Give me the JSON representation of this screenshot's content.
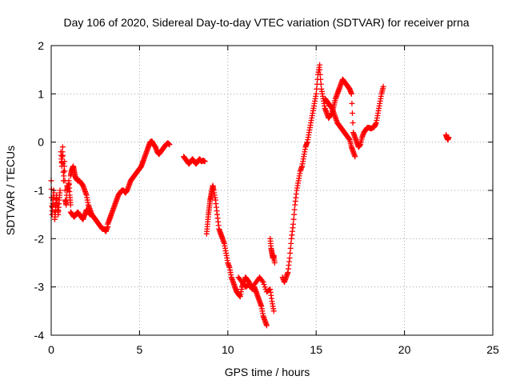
{
  "colors": {
    "series": "#ff0000",
    "grid": "#a0a0a0",
    "axis": "#000000",
    "background": "#ffffff"
  },
  "chart_data": {
    "type": "scatter",
    "title": "Day 106 of 2020, Sidereal Day-to-day VTEC variation (SDTVAR) for receiver prna",
    "xlabel": "GPS time / hours",
    "ylabel": "SDTVAR / TECUs",
    "xlim": [
      0,
      25
    ],
    "ylim": [
      -4,
      2
    ],
    "x_ticks": [
      0,
      5,
      10,
      15,
      20,
      25
    ],
    "y_ticks": [
      -4,
      -3,
      -2,
      -1,
      0,
      1,
      2
    ],
    "grid": true,
    "marker": "plus",
    "series": [
      {
        "name": "SDTVAR",
        "segments": [
          {
            "x": [
              0.0,
              0.05,
              0.1,
              0.15,
              0.2,
              0.25,
              0.3,
              0.35,
              0.4,
              0.45,
              0.5
            ],
            "y": [
              -0.8,
              -1.5,
              -1.2,
              -1.0,
              -1.6,
              -1.4,
              -1.1,
              -1.3,
              -1.5,
              -1.2,
              -1.0
            ]
          },
          {
            "x": [
              0.55,
              0.6,
              0.65,
              0.7,
              0.75,
              0.8,
              0.85,
              0.9,
              0.95,
              1.0,
              1.05,
              1.1
            ],
            "y": [
              -0.2,
              -0.5,
              -0.1,
              -0.8,
              -0.4,
              -1.2,
              -1.3,
              -0.9,
              -1.0,
              -0.8,
              -1.1,
              -1.3
            ]
          },
          {
            "x": [
              1.1,
              1.2,
              1.3,
              1.4,
              1.5,
              1.6,
              1.7,
              1.8,
              1.9,
              2.0,
              2.1,
              2.2
            ],
            "y": [
              -1.45,
              -1.5,
              -1.55,
              -1.5,
              -1.45,
              -1.5,
              -1.55,
              -1.6,
              -1.5,
              -1.4,
              -1.45,
              -1.5
            ]
          },
          {
            "x": [
              1.1,
              1.15,
              1.2,
              1.25,
              1.3,
              1.35,
              1.4,
              1.5,
              1.6,
              1.7,
              1.8,
              1.9,
              2.0,
              2.1,
              2.2,
              2.3,
              2.4,
              2.5,
              2.6,
              2.7,
              2.8,
              2.9,
              3.0,
              3.1,
              3.2
            ],
            "y": [
              -0.7,
              -0.6,
              -0.55,
              -0.5,
              -0.6,
              -0.7,
              -0.75,
              -0.8,
              -0.8,
              -0.85,
              -0.9,
              -1.0,
              -1.1,
              -1.3,
              -1.4,
              -1.5,
              -1.55,
              -1.6,
              -1.65,
              -1.7,
              -1.75,
              -1.8,
              -1.8,
              -1.85,
              -1.75
            ]
          },
          {
            "x": [
              3.2,
              3.3,
              3.4,
              3.5,
              3.6,
              3.7,
              3.8,
              3.9,
              4.0,
              4.1,
              4.2,
              4.3,
              4.4,
              4.5,
              4.6,
              4.7,
              4.8,
              4.9,
              5.0,
              5.1,
              5.2,
              5.3,
              5.4,
              5.5,
              5.6,
              5.7,
              5.8,
              5.9,
              6.0,
              6.1,
              6.2,
              6.3,
              6.4,
              6.5,
              6.6,
              6.7
            ],
            "y": [
              -1.7,
              -1.6,
              -1.5,
              -1.4,
              -1.3,
              -1.2,
              -1.1,
              -1.05,
              -1.0,
              -1.0,
              -1.05,
              -1.0,
              -0.9,
              -0.8,
              -0.75,
              -0.7,
              -0.65,
              -0.6,
              -0.55,
              -0.5,
              -0.4,
              -0.3,
              -0.2,
              -0.1,
              0.0,
              0.02,
              -0.05,
              -0.1,
              -0.2,
              -0.25,
              -0.2,
              -0.15,
              -0.1,
              -0.05,
              -0.02,
              -0.05
            ]
          },
          {
            "x": [
              7.5,
              7.6,
              7.7,
              7.8,
              7.9,
              8.0,
              8.1,
              8.2,
              8.3,
              8.4,
              8.5,
              8.6,
              8.7
            ],
            "y": [
              -0.3,
              -0.35,
              -0.4,
              -0.45,
              -0.4,
              -0.35,
              -0.4,
              -0.45,
              -0.4,
              -0.35,
              -0.4,
              -0.38,
              -0.4
            ]
          },
          {
            "x": [
              8.8,
              8.85,
              8.9,
              8.95,
              9.0,
              9.05,
              9.1,
              9.15,
              9.2,
              9.3,
              9.4,
              9.5,
              9.6,
              9.7,
              9.8,
              9.9,
              10.0,
              10.1,
              10.2,
              10.3,
              10.4,
              10.5,
              10.6,
              10.7,
              10.8,
              10.9,
              11.0,
              11.1,
              11.2,
              11.3,
              11.4,
              11.5,
              11.6,
              11.7,
              11.8,
              11.9,
              12.0,
              12.1,
              12.2
            ],
            "y": [
              -1.9,
              -1.7,
              -1.5,
              -1.35,
              -1.2,
              -1.1,
              -1.0,
              -0.9,
              -1.0,
              -1.2,
              -1.5,
              -1.8,
              -1.9,
              -2.0,
              -2.1,
              -2.3,
              -2.5,
              -2.6,
              -2.8,
              -2.9,
              -3.0,
              -3.1,
              -3.15,
              -3.2,
              -3.0,
              -2.9,
              -2.8,
              -2.85,
              -2.9,
              -3.0,
              -3.05,
              -3.0,
              -3.1,
              -3.2,
              -3.3,
              -3.4,
              -3.6,
              -3.7,
              -3.8
            ]
          },
          {
            "x": [
              10.6,
              10.8,
              11.0,
              11.2,
              11.4,
              11.6,
              11.8,
              12.0,
              12.2,
              12.4,
              12.5,
              12.6
            ],
            "y": [
              -2.8,
              -2.9,
              -3.0,
              -2.95,
              -3.0,
              -2.9,
              -2.8,
              -2.9,
              -3.1,
              -3.05,
              -3.3,
              -3.5
            ]
          },
          {
            "x": [
              12.4,
              12.45,
              12.5,
              12.55,
              12.6,
              12.65
            ],
            "y": [
              -2.0,
              -2.2,
              -2.3,
              -2.4,
              -2.35,
              -2.5
            ]
          },
          {
            "x": [
              13.1,
              13.2,
              13.3,
              13.4,
              13.5,
              13.6,
              13.7,
              13.8,
              13.9,
              14.0,
              14.1,
              14.2,
              14.3,
              14.4,
              14.5,
              14.6,
              14.7,
              14.8,
              14.9,
              15.0,
              15.1,
              15.2
            ],
            "y": [
              -2.8,
              -2.9,
              -2.8,
              -2.7,
              -2.4,
              -2.0,
              -1.7,
              -1.3,
              -1.0,
              -0.8,
              -0.6,
              -0.5,
              -0.3,
              -0.1,
              0.0,
              0.2,
              0.4,
              0.6,
              0.8,
              1.0,
              1.4,
              1.6
            ]
          },
          {
            "x": [
              15.2,
              15.3,
              15.4,
              15.5,
              15.6,
              15.7,
              15.8,
              15.9,
              16.0,
              16.1,
              16.2,
              16.3,
              16.4,
              16.5,
              16.6,
              16.7,
              16.8,
              16.9,
              17.0,
              17.1,
              17.2,
              17.3,
              17.4,
              17.5,
              17.6,
              17.7,
              17.8,
              17.9,
              18.0,
              18.1,
              18.2,
              18.3,
              18.4,
              18.5,
              18.6,
              18.7,
              18.8
            ],
            "y": [
              1.5,
              1.1,
              0.9,
              0.7,
              0.6,
              0.5,
              0.55,
              0.6,
              0.75,
              0.9,
              1.0,
              1.1,
              1.2,
              1.3,
              1.25,
              1.2,
              1.15,
              1.1,
              1.0,
              0.2,
              0.1,
              0.0,
              -0.1,
              -0.05,
              0.1,
              0.2,
              0.25,
              0.3,
              0.3,
              0.28,
              0.3,
              0.32,
              0.4,
              0.6,
              0.8,
              1.0,
              1.15
            ]
          },
          {
            "x": [
              15.5,
              15.6,
              15.7,
              15.8,
              15.9,
              16.0,
              16.1,
              16.2,
              16.3,
              16.4,
              16.5,
              16.6,
              16.7,
              16.8,
              16.9,
              17.0,
              17.1,
              17.2
            ],
            "y": [
              0.9,
              0.85,
              0.8,
              0.75,
              0.7,
              0.6,
              0.5,
              0.4,
              0.35,
              0.3,
              0.25,
              0.2,
              0.15,
              0.1,
              0.05,
              -0.1,
              -0.2,
              -0.3
            ]
          },
          {
            "x": [
              22.35,
              22.4,
              22.45,
              22.5
            ],
            "y": [
              0.15,
              0.1,
              0.05,
              0.1
            ]
          }
        ]
      }
    ]
  }
}
